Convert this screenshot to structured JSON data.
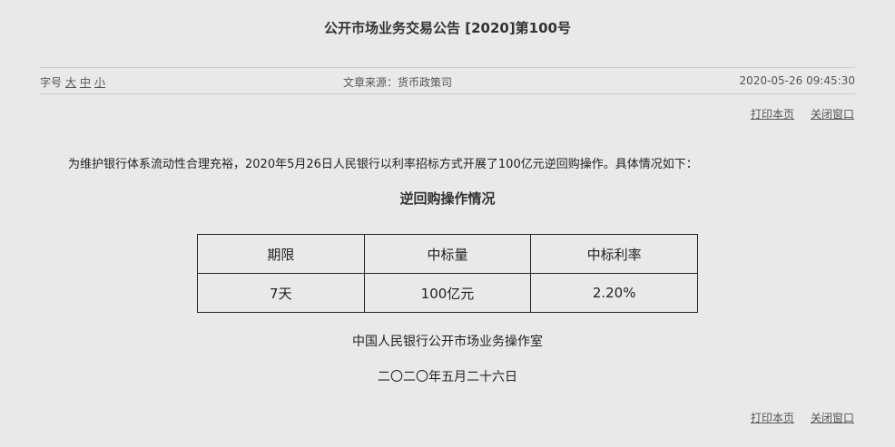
{
  "title": "公开市场业务交易公告 [2020]第100号",
  "meta": {
    "font_label": "字号",
    "font_sizes": [
      "大",
      "中",
      "小"
    ],
    "source": "文章来源：货币政策司",
    "datetime": "2020-05-26 09:45:30"
  },
  "links": {
    "print": "打印本页",
    "close": "关闭窗口"
  },
  "paragraph": "为维护银行体系流动性合理充裕，2020年5月26日人民银行以利率招标方式开展了100亿元逆回购操作。具体情况如下：",
  "subtitle": "逆回购操作情况",
  "table": {
    "headers": [
      "期限",
      "中标量",
      "中标利率"
    ],
    "rows": [
      [
        "7天",
        "100亿元",
        "2.20%"
      ]
    ]
  },
  "signature": {
    "org": "中国人民银行公开市场业务操作室",
    "date": "二〇二〇年五月二十六日"
  }
}
